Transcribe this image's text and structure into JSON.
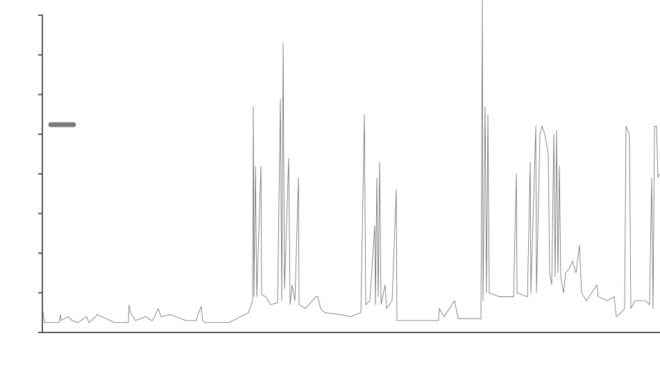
{
  "chart_data": {
    "type": "line",
    "x": [
      62,
      64,
      85,
      87,
      88,
      98,
      104,
      112,
      125,
      128,
      138,
      140,
      165,
      185,
      186,
      188,
      195,
      210,
      218,
      220,
      228,
      232,
      245,
      268,
      283,
      285,
      290,
      292,
      295,
      330,
      358,
      364,
      365,
      366,
      368,
      370,
      376,
      377,
      383,
      390,
      400,
      404,
      406,
      408,
      409,
      410,
      416,
      418,
      421,
      425,
      430,
      431,
      440,
      455,
      458,
      462,
      468,
      490,
      505,
      520,
      525,
      527,
      533,
      540,
      541,
      543,
      545,
      547,
      549,
      555,
      557,
      565,
      571,
      572,
      600,
      632,
      633,
      640,
      655,
      660,
      680,
      693,
      695,
      696,
      699,
      701,
      703,
      705,
      720,
      740,
      744,
      745,
      760,
      764,
      765,
      772,
      773,
      778,
      781,
      785,
      790,
      792,
      795,
      798,
      800,
      802,
      804,
      806,
      808,
      812,
      815,
      820,
      825,
      830,
      835,
      838,
      845,
      860,
      862,
      875,
      885,
      888,
      895,
      900,
      902,
      907,
      909,
      915,
      930,
      936,
      939,
      941,
      943,
      946,
      948,
      950
    ],
    "series": [
      {
        "color": "#7a7a7a",
        "values": [
          0.52,
          0.25,
          0.25,
          0.45,
          0.3,
          0.4,
          0.3,
          0.25,
          0.4,
          0.25,
          0.4,
          0.45,
          0.25,
          0.25,
          0.7,
          0.5,
          0.3,
          0.4,
          0.3,
          0.3,
          0.6,
          0.4,
          0.45,
          0.3,
          0.3,
          0.45,
          0.65,
          0.3,
          0.25,
          0.25,
          0.5,
          0.8,
          5.7,
          0.9,
          4.2,
          0.9,
          4.2,
          0.95,
          0.9,
          0.7,
          0.75,
          5.9,
          0.8,
          7.3,
          4.0,
          1.1,
          4.4,
          0.7,
          1.2,
          0.8,
          3.9,
          0.7,
          0.6,
          0.9,
          0.9,
          0.6,
          0.5,
          0.45,
          0.4,
          0.5,
          5.5,
          0.7,
          0.8,
          2.7,
          0.7,
          3.9,
          0.9,
          4.3,
          0.7,
          1.2,
          0.6,
          0.8,
          3.6,
          0.3,
          0.3,
          0.3,
          0.6,
          0.4,
          0.8,
          0.35,
          0.35,
          0.35,
          8.4,
          0.8,
          5.7,
          1.0,
          5.5,
          1.0,
          0.9,
          0.9,
          4.0,
          1.0,
          0.9,
          4.3,
          1.0,
          5.2,
          1.0,
          5.0,
          5.2,
          5.0,
          4.5,
          1.5,
          1.2,
          5.0,
          1.4,
          5.1,
          1.5,
          4.2,
          1.4,
          1.0,
          1.5,
          1.6,
          1.8,
          1.5,
          2.2,
          1.0,
          0.8,
          1.2,
          0.9,
          0.8,
          0.9,
          0.4,
          0.5,
          0.6,
          5.2,
          5.0,
          0.6,
          0.8,
          0.8,
          0.7,
          3.9,
          0.6,
          5.2,
          5.2,
          3.9,
          4.0
        ]
      }
    ],
    "xlim": [
      62,
      951
    ],
    "ylim": [
      0,
      8
    ],
    "yticks": [
      1,
      2,
      3,
      4,
      5,
      6,
      7,
      8
    ],
    "legend": "upper left"
  }
}
